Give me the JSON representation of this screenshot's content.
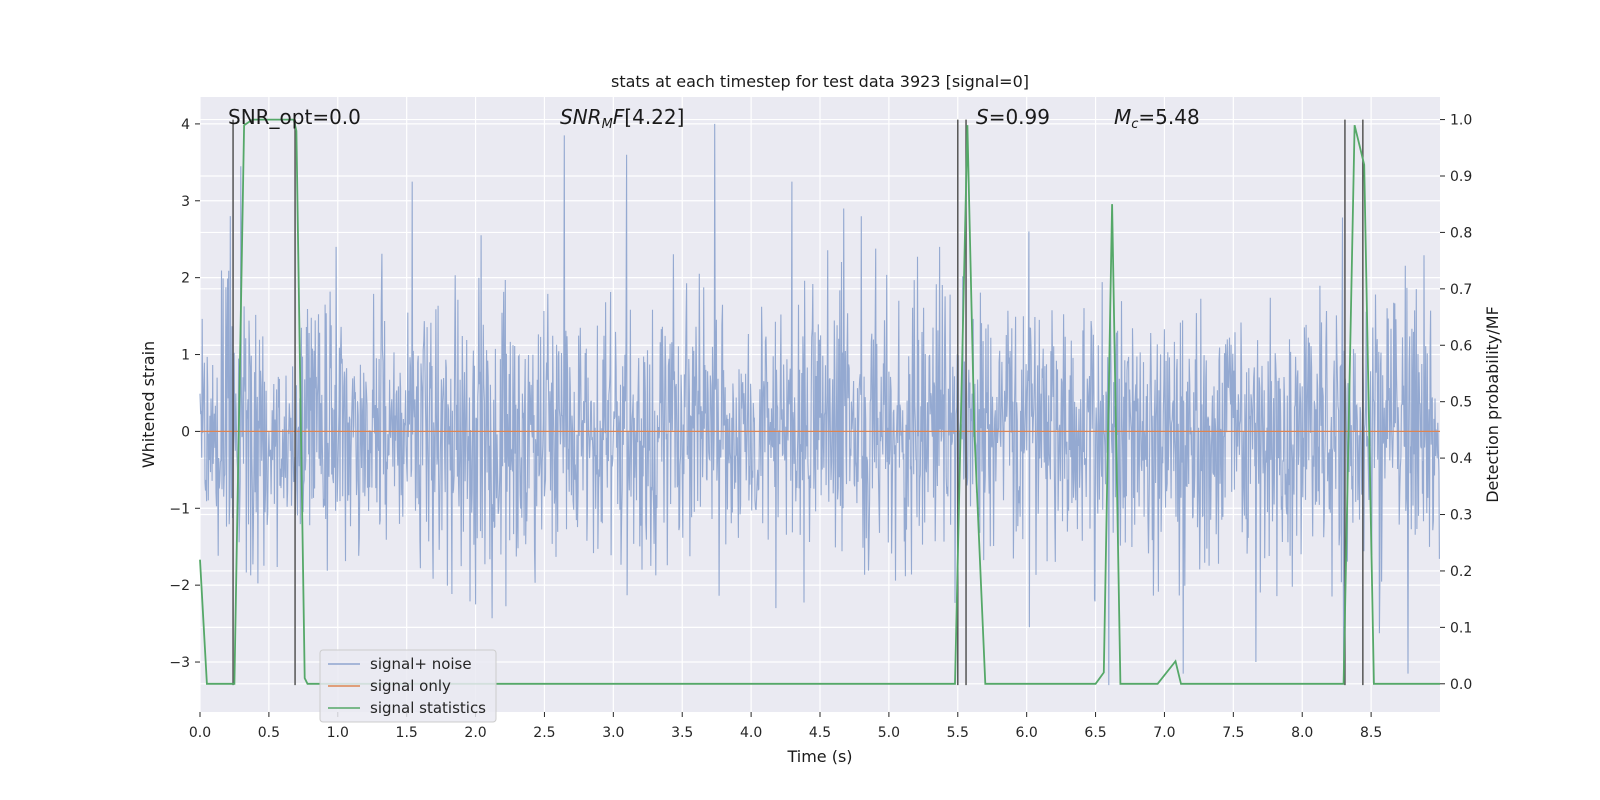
{
  "chart_data": {
    "type": "line",
    "title": "stats at each timestep for test data 3923 [signal=0]",
    "xlabel": "Time (s)",
    "ylabel": "Whitened strain",
    "ylabel_right": "Detection probability/MF",
    "xlim": [
      0.0,
      9.0
    ],
    "ylim": [
      -3.65,
      4.35
    ],
    "ylim_right": [
      -0.05,
      1.04
    ],
    "xticks": [
      "0.0",
      "0.5",
      "1.0",
      "1.5",
      "2.0",
      "2.5",
      "3.0",
      "3.5",
      "4.0",
      "4.5",
      "5.0",
      "5.5",
      "6.0",
      "6.5",
      "7.0",
      "7.5",
      "8.0",
      "8.5"
    ],
    "xtick_values": [
      0.0,
      0.5,
      1.0,
      1.5,
      2.0,
      2.5,
      3.0,
      3.5,
      4.0,
      4.5,
      5.0,
      5.5,
      6.0,
      6.5,
      7.0,
      7.5,
      8.0,
      8.5
    ],
    "yticks": [
      "−3",
      "−2",
      "−1",
      "0",
      "1",
      "2",
      "3",
      "4"
    ],
    "ytick_values": [
      -3,
      -2,
      -1,
      0,
      1,
      2,
      3,
      4
    ],
    "yticks_right": [
      "0.0",
      "0.1",
      "0.2",
      "0.3",
      "0.4",
      "0.5",
      "0.6",
      "0.7",
      "0.8",
      "0.9",
      "1.0"
    ],
    "ytick_right_values": [
      0.0,
      0.1,
      0.2,
      0.3,
      0.4,
      0.5,
      0.6,
      0.7,
      0.8,
      0.9,
      1.0
    ],
    "grid": true,
    "legend_position": "lower-left",
    "annotations": {
      "snr_opt": "SNR_opt=0.0",
      "snr_mf": "[4.22]",
      "s": "=0.99",
      "mc": "=5.48"
    },
    "series": [
      {
        "name": "signal+ noise",
        "color": "#8fa5cf",
        "noise_std": 0.85,
        "sample_rate": 250,
        "duration": 9.0,
        "peak_values": [
          3.45,
          2.4,
          3.25,
          2.0,
          3.85,
          3.6,
          4.0,
          3.25,
          2.8,
          2.4,
          2.6,
          -3.3,
          -3.15,
          -3.0,
          -3.2,
          -3.15
        ]
      },
      {
        "name": "signal only",
        "color": "#dd8452",
        "x": [
          0.0,
          9.0
        ],
        "y": [
          0.0,
          0.0
        ]
      },
      {
        "name": "signal statistics",
        "color": "#55a868",
        "axis": "right",
        "x": [
          0.0,
          0.05,
          0.25,
          0.32,
          0.38,
          0.5,
          0.68,
          0.7,
          0.76,
          0.78,
          5.48,
          5.57,
          5.62,
          5.7,
          6.3,
          6.5,
          6.56,
          6.62,
          6.68,
          6.75,
          6.95,
          7.08,
          7.12,
          7.2,
          8.3,
          8.38,
          8.45,
          8.52,
          8.7,
          9.0
        ],
        "y": [
          0.22,
          0.0,
          0.0,
          0.99,
          1.0,
          1.0,
          1.0,
          0.98,
          0.01,
          0.0,
          0.0,
          0.99,
          0.45,
          0.0,
          0.0,
          0.0,
          0.02,
          0.85,
          0.0,
          0.0,
          0.0,
          0.04,
          0.0,
          0.0,
          0.0,
          0.99,
          0.92,
          0.0,
          0.0,
          0.0
        ]
      }
    ],
    "vertical_lines": {
      "color": "#555555",
      "x": [
        0.24,
        0.69,
        5.5,
        5.56,
        8.31,
        8.44
      ]
    }
  }
}
